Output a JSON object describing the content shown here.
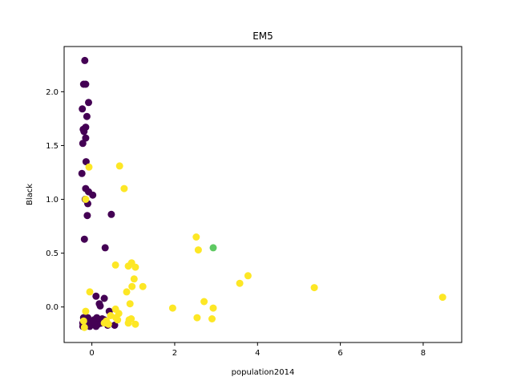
{
  "chart_data": {
    "type": "scatter",
    "title": "EM5",
    "xlabel": "population2014",
    "ylabel": "Black",
    "xlim": [
      -0.67,
      8.93
    ],
    "ylim": [
      -0.33,
      2.42
    ],
    "xticks": [
      0,
      2,
      4,
      6,
      8
    ],
    "yticks": [
      0.0,
      0.5,
      1.0,
      1.5,
      2.0
    ],
    "xtick_labels": [
      "0",
      "2",
      "4",
      "6",
      "8"
    ],
    "ytick_labels": [
      "0.0",
      "0.5",
      "1.0",
      "1.5",
      "2.0"
    ],
    "grid": false,
    "legend": "none",
    "colors": {
      "cluster_purple": "#440154",
      "cluster_yellow": "#fde725",
      "cluster_green": "#5ec962"
    },
    "series": [
      {
        "color": "#440154",
        "points": [
          [
            -0.17,
            2.29
          ],
          [
            -0.2,
            2.07
          ],
          [
            -0.15,
            2.07
          ],
          [
            -0.08,
            1.9
          ],
          [
            -0.23,
            1.84
          ],
          [
            -0.12,
            1.77
          ],
          [
            -0.15,
            1.67
          ],
          [
            -0.21,
            1.65
          ],
          [
            -0.19,
            1.63
          ],
          [
            -0.15,
            1.57
          ],
          [
            -0.22,
            1.52
          ],
          [
            -0.14,
            1.35
          ],
          [
            -0.24,
            1.24
          ],
          [
            -0.15,
            1.1
          ],
          [
            -0.08,
            1.07
          ],
          [
            0.02,
            1.04
          ],
          [
            -0.16,
            1.0
          ],
          [
            -0.1,
            0.96
          ],
          [
            -0.11,
            0.85
          ],
          [
            0.47,
            0.86
          ],
          [
            -0.18,
            0.63
          ],
          [
            0.32,
            0.55
          ],
          [
            0.1,
            0.1
          ],
          [
            0.3,
            0.08
          ],
          [
            0.18,
            0.03
          ],
          [
            0.2,
            0.01
          ],
          [
            0.42,
            -0.04
          ],
          [
            -0.2,
            -0.1
          ],
          [
            -0.1,
            -0.1
          ],
          [
            0.05,
            -0.12
          ],
          [
            -0.15,
            -0.13
          ],
          [
            0.25,
            -0.11
          ],
          [
            -0.22,
            -0.15
          ],
          [
            0.0,
            -0.15
          ],
          [
            0.15,
            -0.16
          ],
          [
            0.55,
            -0.17
          ],
          [
            -0.12,
            -0.17
          ],
          [
            0.1,
            -0.18
          ],
          [
            -0.22,
            -0.18
          ],
          [
            -0.05,
            -0.18
          ],
          [
            0.38,
            -0.17
          ],
          [
            0.05,
            -0.14
          ],
          [
            -0.18,
            -0.17
          ],
          [
            0.22,
            -0.15
          ],
          [
            -0.08,
            -0.16
          ],
          [
            0.3,
            -0.12
          ],
          [
            0.12,
            -0.1
          ]
        ]
      },
      {
        "color": "#fde725",
        "points": [
          [
            -0.07,
            1.3
          ],
          [
            0.67,
            1.31
          ],
          [
            0.78,
            1.1
          ],
          [
            -0.15,
            1.0
          ],
          [
            2.52,
            0.65
          ],
          [
            2.57,
            0.53
          ],
          [
            0.57,
            0.39
          ],
          [
            0.88,
            0.38
          ],
          [
            0.96,
            0.41
          ],
          [
            1.05,
            0.37
          ],
          [
            1.02,
            0.26
          ],
          [
            3.77,
            0.29
          ],
          [
            3.57,
            0.22
          ],
          [
            1.23,
            0.19
          ],
          [
            0.97,
            0.19
          ],
          [
            0.84,
            0.14
          ],
          [
            5.37,
            0.18
          ],
          [
            8.47,
            0.09
          ],
          [
            -0.05,
            0.14
          ],
          [
            0.92,
            0.03
          ],
          [
            2.71,
            0.05
          ],
          [
            0.57,
            -0.02
          ],
          [
            0.65,
            -0.06
          ],
          [
            1.95,
            -0.01
          ],
          [
            2.93,
            -0.01
          ],
          [
            0.45,
            -0.08
          ],
          [
            0.58,
            -0.1
          ],
          [
            2.54,
            -0.1
          ],
          [
            2.9,
            -0.11
          ],
          [
            0.9,
            -0.12
          ],
          [
            0.95,
            -0.11
          ],
          [
            0.62,
            -0.12
          ],
          [
            0.35,
            -0.13
          ],
          [
            0.88,
            -0.15
          ],
          [
            1.05,
            -0.16
          ],
          [
            0.4,
            -0.16
          ],
          [
            -0.15,
            -0.04
          ],
          [
            -0.2,
            -0.13
          ],
          [
            -0.18,
            -0.19
          ],
          [
            0.3,
            -0.15
          ]
        ]
      },
      {
        "color": "#5ec962",
        "points": [
          [
            2.93,
            0.55
          ]
        ]
      }
    ]
  }
}
